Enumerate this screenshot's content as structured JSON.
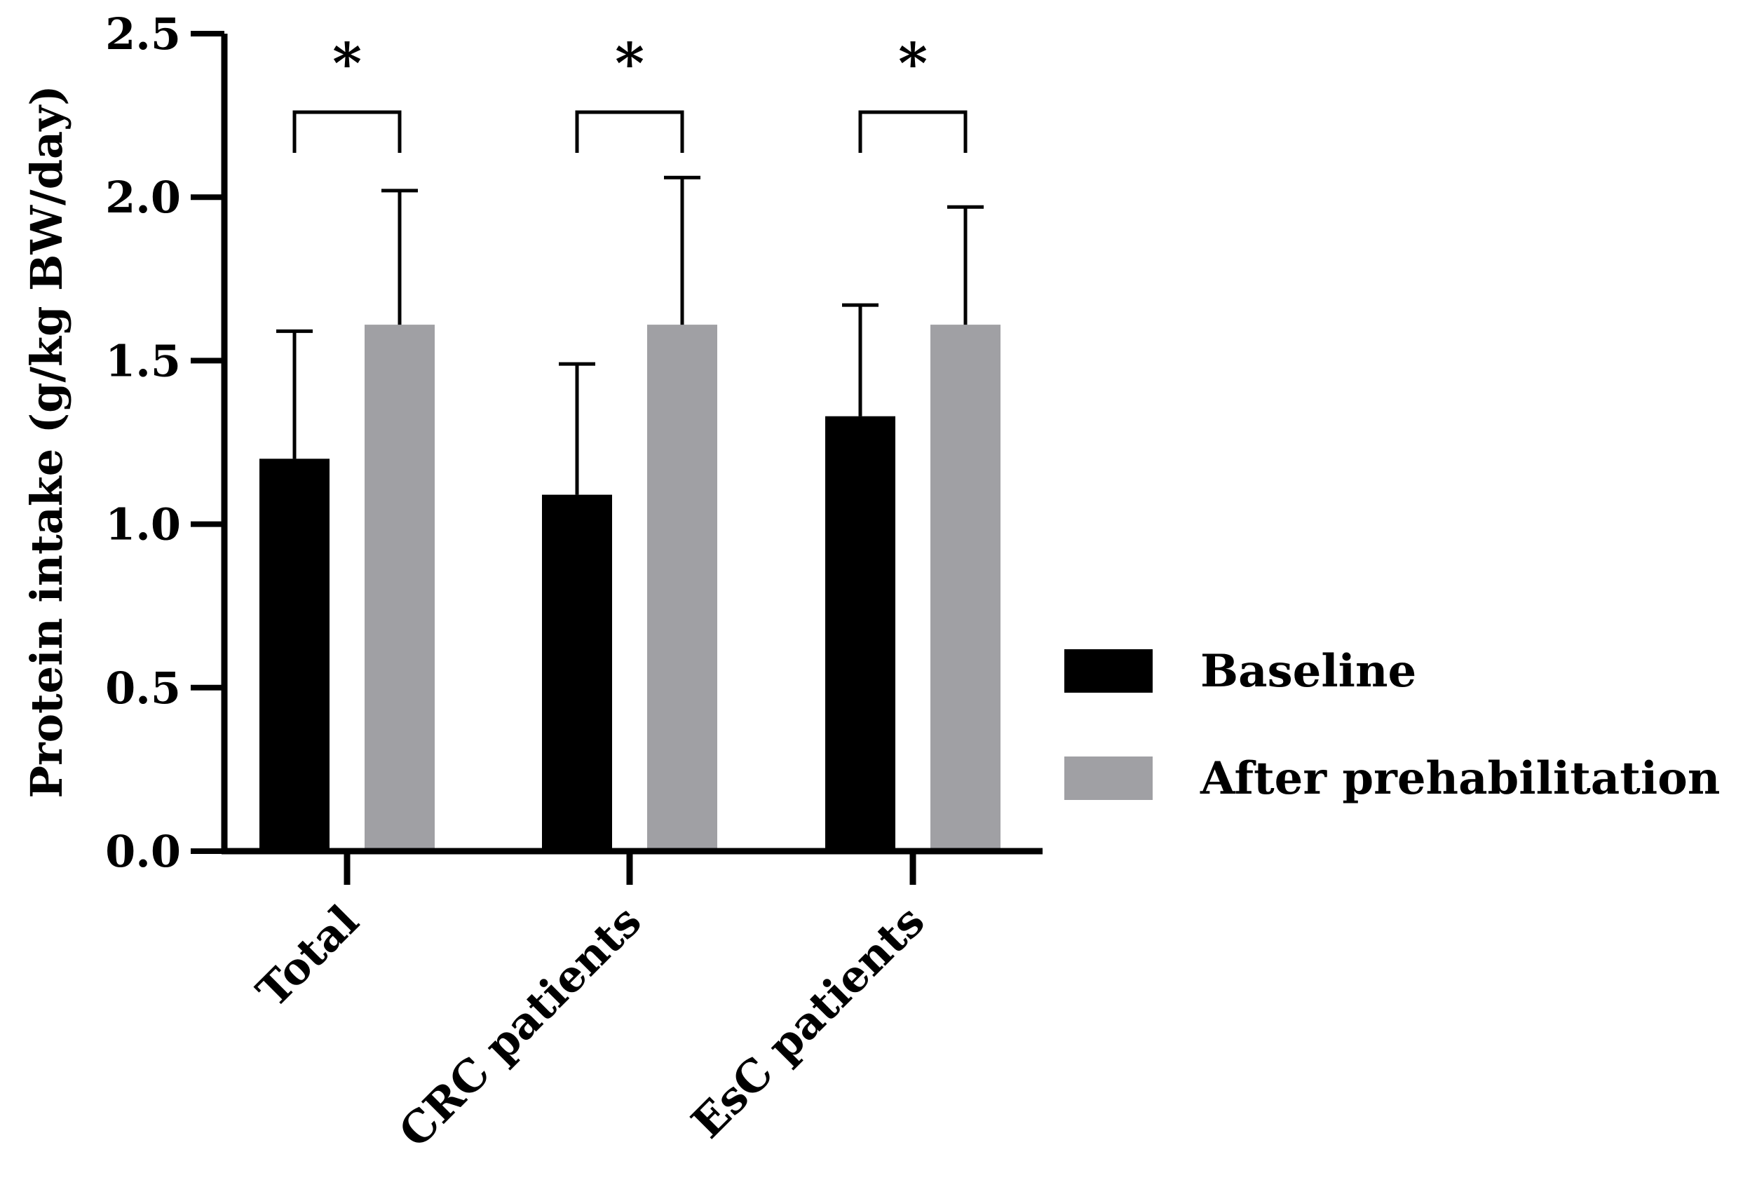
{
  "chart_data": {
    "type": "bar",
    "title": "",
    "xlabel": "",
    "ylabel": "Protein intake (g/kg BW/day)",
    "ylim": [
      0,
      2.5
    ],
    "yticks": [
      "0.0",
      "0.5",
      "1.0",
      "1.5",
      "2.0",
      "2.5"
    ],
    "categories": [
      "Total",
      "CRC patients",
      "EsC patients"
    ],
    "series": [
      {
        "name": "Baseline",
        "color": "#000000",
        "values": [
          1.2,
          1.09,
          1.33
        ],
        "errors": [
          0.39,
          0.4,
          0.34
        ]
      },
      {
        "name": "After prehabilitation",
        "color": "#a0a0a4",
        "values": [
          1.61,
          1.61,
          1.61
        ],
        "errors": [
          0.41,
          0.45,
          0.36
        ]
      }
    ],
    "significance": [
      {
        "category": "Total",
        "label": "*"
      },
      {
        "category": "CRC patients",
        "label": "*"
      },
      {
        "category": "EsC patients",
        "label": "*"
      }
    ],
    "legend_position": "right"
  }
}
